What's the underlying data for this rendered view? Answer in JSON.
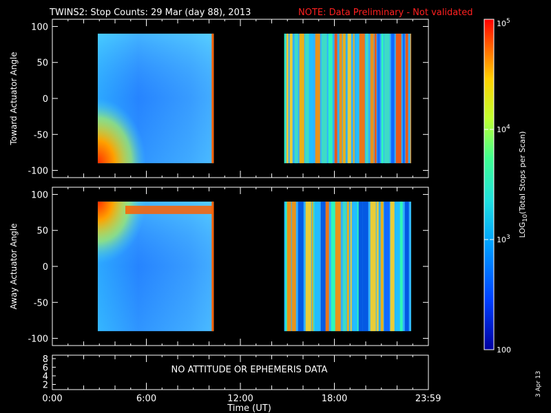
{
  "header": {
    "title": "TWINS2: Stop Counts: 29 Mar (day  88), 2013",
    "note": "NOTE: Data Preliminary - Not validated"
  },
  "colorbar": {
    "label": "LOG10(Total Stops per Scan)",
    "label_base": "LOG",
    "label_sub": "10",
    "label_rest": "(Total Stops per Scan)",
    "ticks": [
      {
        "base": "10",
        "exp": "5"
      },
      {
        "base": "10",
        "exp": "4"
      },
      {
        "base": "10",
        "exp": "3"
      },
      {
        "base": "100",
        "exp": ""
      }
    ]
  },
  "date_stamp": "3 Apr 13",
  "bottom_panel": {
    "message": "NO ATTITUDE OR EPHEMERIS DATA",
    "y_ticks": [
      "8",
      "6",
      "4",
      "2"
    ]
  },
  "x_axis": {
    "label": "Time (UT)",
    "ticks": [
      "0:00",
      "6:00",
      "12:00",
      "18:00",
      "23:59"
    ]
  },
  "chart_data": [
    {
      "type": "heatmap",
      "ylabel": "Toward Actuator Angle",
      "xlabel": "",
      "xlim": [
        0,
        24
      ],
      "ylim": [
        -110,
        110
      ],
      "yticks": [
        "100",
        "50",
        "0",
        "-50",
        "-100"
      ],
      "ytick_values": [
        100,
        50,
        0,
        -50,
        -100
      ],
      "color_scale": "log",
      "value_range": [
        100,
        100000
      ],
      "data_blocks": [
        {
          "t_start": 2.9,
          "t_end": 10.3,
          "angle_range": [
            -90,
            90
          ]
        },
        {
          "t_start": 14.8,
          "t_end": 22.9,
          "angle_range": [
            -90,
            90
          ]
        }
      ]
    },
    {
      "type": "heatmap",
      "ylabel": "Away Actuator Angle",
      "xlabel": "",
      "xlim": [
        0,
        24
      ],
      "ylim": [
        -110,
        110
      ],
      "yticks": [
        "100",
        "50",
        "0",
        "-50",
        "-100"
      ],
      "ytick_values": [
        100,
        50,
        0,
        -50,
        -100
      ],
      "color_scale": "log",
      "value_range": [
        100,
        100000
      ],
      "data_blocks": [
        {
          "t_start": 2.9,
          "t_end": 10.3,
          "angle_range": [
            -90,
            90
          ]
        },
        {
          "t_start": 14.8,
          "t_end": 22.9,
          "angle_range": [
            -90,
            90
          ]
        }
      ]
    }
  ]
}
